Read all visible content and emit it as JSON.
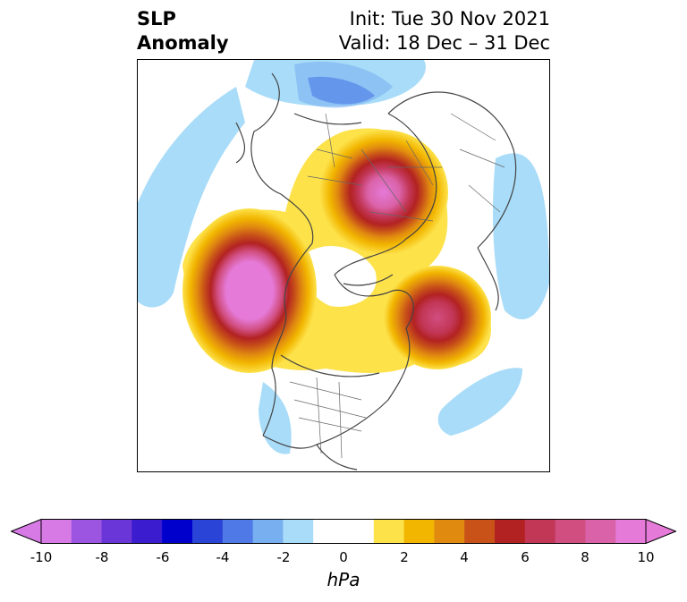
{
  "title": {
    "left_line1": "SLP",
    "left_line2": "Anomaly",
    "right_line1": "Init: Tue 30 Nov 2021",
    "right_line2": "Valid: 18 Dec – 31 Dec"
  },
  "colorbar": {
    "unit": "hPa",
    "range": [
      -10,
      10
    ],
    "ticks": [
      "-10",
      "-8",
      "-6",
      "-4",
      "-2",
      "0",
      "2",
      "4",
      "6",
      "8",
      "10"
    ],
    "colors": [
      "#d77ae6",
      "#9b55e0",
      "#6a36d8",
      "#3b1ccf",
      "#0000cd",
      "#2b44d8",
      "#4f79e6",
      "#77aff0",
      "#a9dcf8",
      "#ffffff",
      "#ffffff",
      "#fde24a",
      "#f2b600",
      "#e08a10",
      "#c85218",
      "#b22222",
      "#c23656",
      "#d14e80",
      "#da62a8",
      "#e57ad8"
    ],
    "extend": "both"
  },
  "map": {
    "projection": "polar-stereographic-north",
    "features": [
      {
        "name": "positive-anomaly-siberia",
        "peak_hPa": 10
      },
      {
        "name": "positive-anomaly-gulf-of-alaska",
        "peak_hPa": 10
      },
      {
        "name": "positive-anomaly-north-atlantic",
        "peak_hPa": 9
      },
      {
        "name": "negative-anomaly-mediterranean",
        "peak_hPa": -4
      }
    ]
  }
}
